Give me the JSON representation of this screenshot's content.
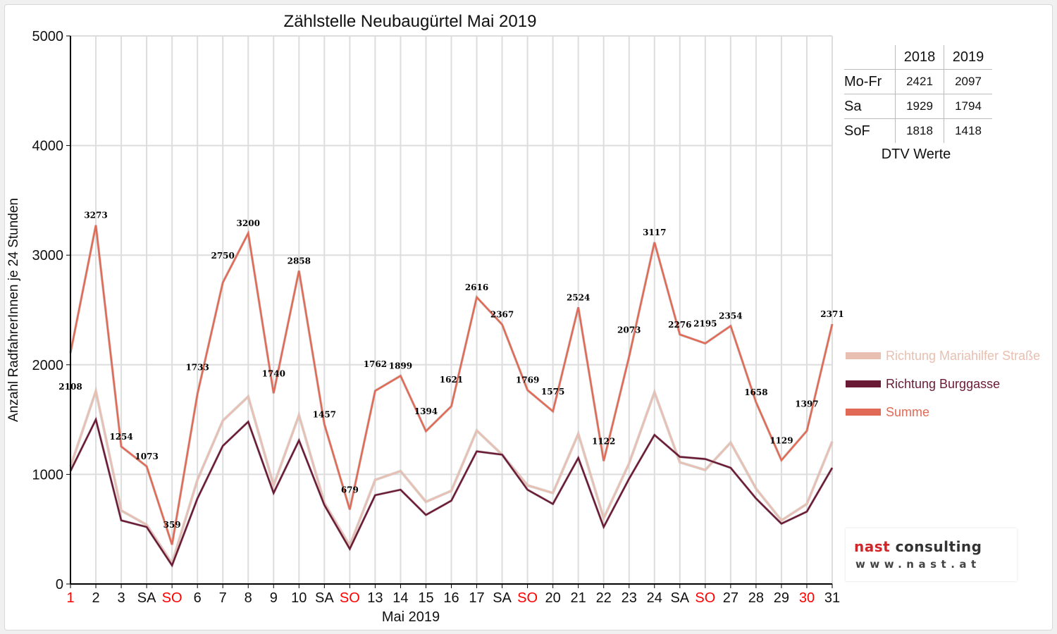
{
  "chart_data": {
    "type": "line",
    "title": "Zählstelle Neubaugürtel Mai 2019",
    "xlabel": "Mai 2019",
    "ylabel": "Anzahl RadfahrerInnen je 24 Stunden",
    "ylim": [
      0,
      5000
    ],
    "yticks": [
      0,
      1000,
      2000,
      3000,
      4000,
      5000
    ],
    "grid": true,
    "legend_position": "right",
    "categories": [
      "1",
      "2",
      "3",
      "SA",
      "SO",
      "6",
      "7",
      "8",
      "9",
      "10",
      "SA",
      "SO",
      "13",
      "14",
      "15",
      "16",
      "17",
      "SA",
      "SO",
      "20",
      "21",
      "22",
      "23",
      "24",
      "SA",
      "SO",
      "27",
      "28",
      "29",
      "30",
      "31"
    ],
    "red_categories": [
      0,
      4,
      11,
      18,
      25,
      29
    ],
    "series": [
      {
        "name": "Richtung Mariahilfer Straße",
        "color": "#e8bfb0",
        "values": [
          1070,
          1760,
          670,
          540,
          190,
          950,
          1490,
          1710,
          900,
          1540,
          740,
          350,
          950,
          1030,
          750,
          850,
          1400,
          1180,
          900,
          830,
          1370,
          600,
          1100,
          1750,
          1110,
          1040,
          1290,
          870,
          580,
          730,
          1300
        ]
      },
      {
        "name": "Richtung Burggasse",
        "color": "#6b1a35",
        "values": [
          1030,
          1500,
          580,
          520,
          170,
          780,
          1260,
          1480,
          830,
          1310,
          720,
          320,
          810,
          860,
          630,
          760,
          1210,
          1180,
          860,
          730,
          1150,
          520,
          960,
          1360,
          1160,
          1140,
          1060,
          780,
          550,
          660,
          1060
        ]
      },
      {
        "name": "Summe",
        "color": "#e06a55",
        "values": [
          2108,
          3273,
          1254,
          1073,
          359,
          1733,
          2750,
          3200,
          1740,
          2858,
          1457,
          679,
          1762,
          1899,
          1394,
          1621,
          2616,
          2367,
          1769,
          1575,
          2524,
          1122,
          2073,
          3117,
          2276,
          2195,
          2354,
          1658,
          1129,
          1397,
          2371
        ]
      }
    ]
  },
  "dtv_table": {
    "headers": [
      "",
      "2018",
      "2019"
    ],
    "rows": [
      {
        "label": "Mo-Fr",
        "v2018": "2421",
        "v2019": "2097"
      },
      {
        "label": "Sa",
        "v2018": "1929",
        "v2019": "1794"
      },
      {
        "label": "SoF",
        "v2018": "1818",
        "v2019": "1418"
      }
    ],
    "caption": "DTV Werte"
  },
  "logo": {
    "name_part1": "nast",
    "name_part2": "consulting",
    "url": "www.nast.at"
  },
  "colors": {
    "tick_red": "#ff0000",
    "grid": "#dddddd",
    "axis": "#000000"
  }
}
